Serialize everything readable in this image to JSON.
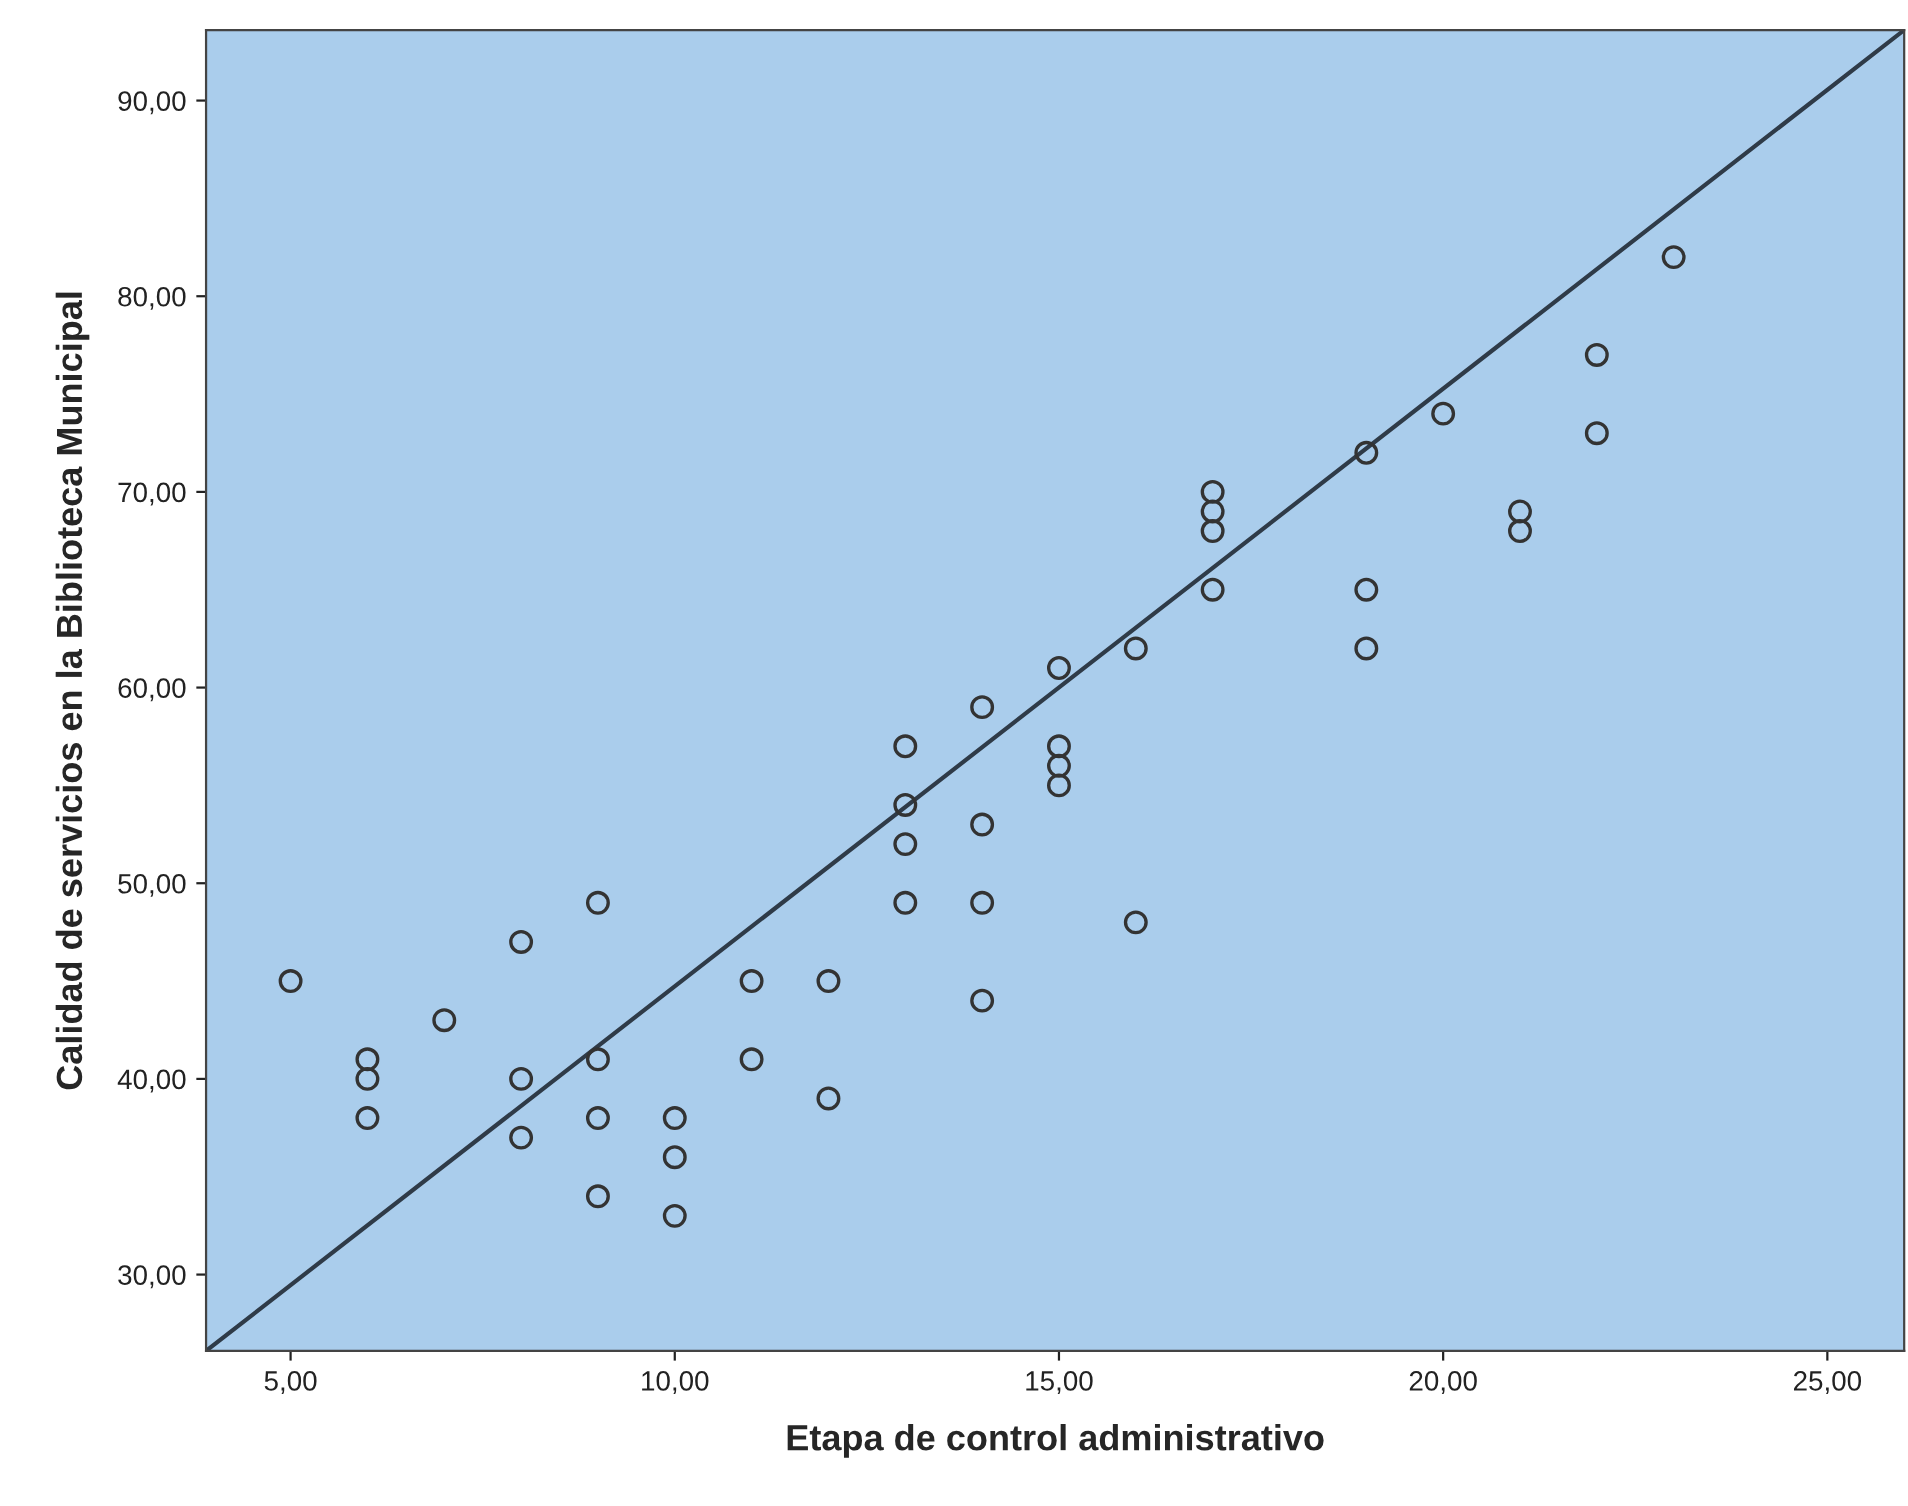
{
  "chart_data": {
    "type": "scatter",
    "xlabel": "Etapa de control administrativo",
    "ylabel": "Calidad de servicios en la Biblioteca Municipal",
    "xlim": [
      3.9,
      26.0
    ],
    "ylim": [
      26.1,
      93.6
    ],
    "xticks": [
      {
        "value": 5,
        "label": "5,00"
      },
      {
        "value": 10,
        "label": "10,00"
      },
      {
        "value": 15,
        "label": "15,00"
      },
      {
        "value": 20,
        "label": "20,00"
      },
      {
        "value": 25,
        "label": "25,00"
      }
    ],
    "yticks": [
      {
        "value": 30,
        "label": "30,00"
      },
      {
        "value": 40,
        "label": "40,00"
      },
      {
        "value": 50,
        "label": "50,00"
      },
      {
        "value": 60,
        "label": "60,00"
      },
      {
        "value": 70,
        "label": "70,00"
      },
      {
        "value": 80,
        "label": "80,00"
      },
      {
        "value": 90,
        "label": "90,00"
      }
    ],
    "grid": false,
    "legend": false,
    "series": [
      {
        "marker": "circle",
        "color": "#333333",
        "x": [
          5,
          6,
          6,
          6,
          7,
          8,
          8,
          8,
          9,
          9,
          9,
          9,
          10,
          10,
          10,
          11,
          11,
          12,
          12,
          13,
          13,
          13,
          13,
          14,
          14,
          14,
          14,
          15,
          15,
          15,
          15,
          16,
          16,
          17,
          17,
          17,
          17,
          19,
          19,
          19,
          20,
          21,
          21,
          22,
          22,
          23
        ],
        "values": [
          45,
          41,
          40,
          38,
          43,
          47,
          40,
          37,
          49,
          41,
          38,
          34,
          38,
          36,
          33,
          45,
          41,
          45,
          39,
          57,
          54,
          52,
          49,
          59,
          53,
          49,
          44,
          61,
          57,
          56,
          55,
          62,
          48,
          70,
          69,
          68,
          65,
          72,
          65,
          62,
          74,
          69,
          68,
          77,
          73,
          82
        ]
      },
      {
        "type": "line",
        "marker": "none",
        "color": "#2f3b48",
        "x": [
          3.9,
          26.0
        ],
        "values": [
          26.1,
          93.6
        ]
      }
    ]
  }
}
